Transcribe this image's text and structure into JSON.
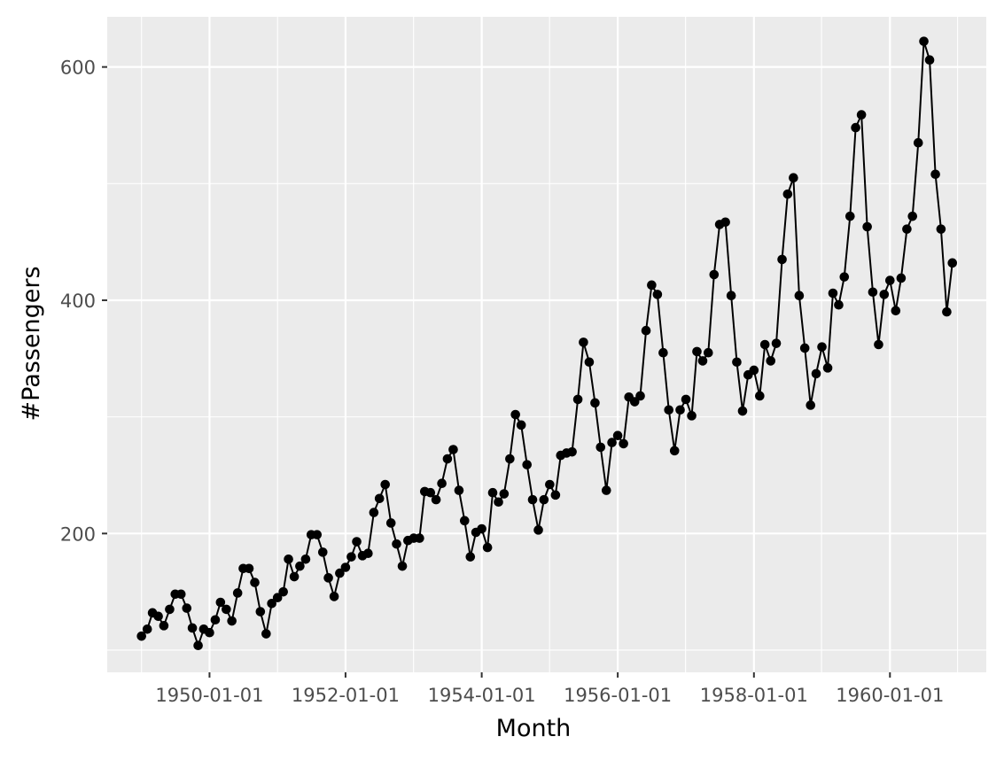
{
  "chart_data": {
    "type": "line",
    "markers": true,
    "xlabel": "Month",
    "ylabel": "#Passengers",
    "x_start": "1949-01",
    "x_frequency": "monthly",
    "xlim": [
      "1948-07-01",
      "1961-06-01"
    ],
    "ylim": [
      81,
      643
    ],
    "x_ticks": [
      "1950-01-01",
      "1952-01-01",
      "1954-01-01",
      "1956-01-01",
      "1958-01-01",
      "1960-01-01"
    ],
    "y_ticks": [
      200,
      400,
      600
    ],
    "grid": true,
    "background": "#ebebeb",
    "grid_major_color": "#ffffff",
    "series": [
      {
        "values": [
          112,
          118,
          132,
          129,
          121,
          135,
          148,
          148,
          136,
          119,
          104,
          118,
          115,
          126,
          141,
          135,
          125,
          149,
          170,
          170,
          158,
          133,
          114,
          140,
          145,
          150,
          178,
          163,
          172,
          178,
          199,
          199,
          184,
          162,
          146,
          166,
          171,
          180,
          193,
          181,
          183,
          218,
          230,
          242,
          209,
          191,
          172,
          194,
          196,
          196,
          236,
          235,
          229,
          243,
          264,
          272,
          237,
          211,
          180,
          201,
          204,
          188,
          235,
          227,
          234,
          264,
          302,
          293,
          259,
          229,
          203,
          229,
          242,
          233,
          267,
          269,
          270,
          315,
          364,
          347,
          312,
          274,
          237,
          278,
          284,
          277,
          317,
          313,
          318,
          374,
          413,
          405,
          355,
          306,
          271,
          306,
          315,
          301,
          356,
          348,
          355,
          422,
          465,
          467,
          404,
          347,
          305,
          336,
          340,
          318,
          362,
          348,
          363,
          435,
          491,
          505,
          404,
          359,
          310,
          337,
          360,
          342,
          406,
          396,
          420,
          472,
          548,
          559,
          463,
          407,
          362,
          405,
          417,
          391,
          419,
          461,
          472,
          535,
          622,
          606,
          508,
          461,
          390,
          432
        ],
        "color": "#000000"
      }
    ]
  }
}
